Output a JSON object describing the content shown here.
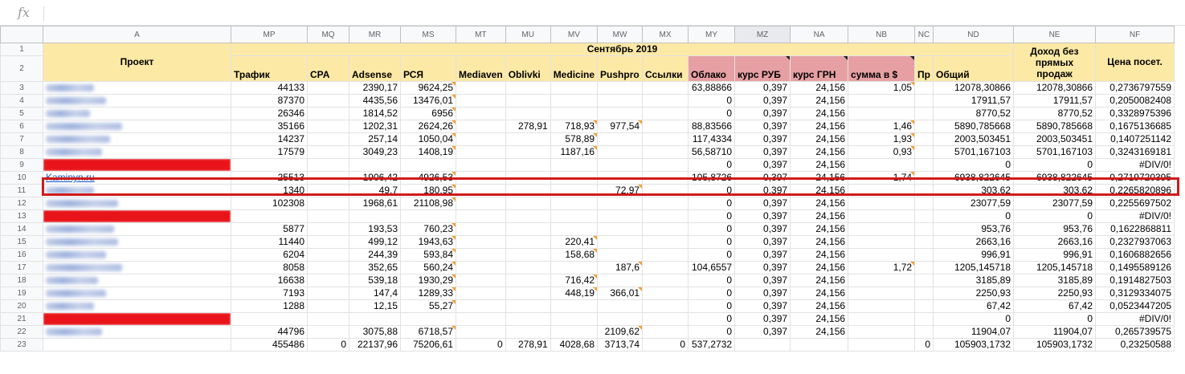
{
  "formula_bar": {
    "fx_icon": "fx",
    "value": ""
  },
  "columns": [
    "",
    "A",
    "MP",
    "MQ",
    "MR",
    "MS",
    "MT",
    "MU",
    "MV",
    "MW",
    "MX",
    "MY",
    "MZ",
    "NA",
    "NB",
    "NC",
    "ND",
    "NE",
    "NF"
  ],
  "selected_column": "MZ",
  "header": {
    "project": "Проект",
    "month": "Сентябрь 2019",
    "income_no_direct": "Доход без прямых продаж",
    "price_per_visit": "Цена посет.",
    "sub": [
      "Трафик",
      "CPA",
      "Adsense",
      "РСЯ",
      "Mediaven",
      "Oblivki",
      "Medicine",
      "Pushpro",
      "Ссылки",
      "Облако",
      "курс РУБ",
      "курс ГРН",
      "сумма в $",
      "Пр",
      "Общий"
    ]
  },
  "rows": [
    {
      "num": "3",
      "project": "",
      "blur": 60,
      "vals": [
        "44133",
        "",
        "2390,17",
        "9624,25",
        "",
        "",
        "",
        "",
        "",
        "63,88866",
        "0,397",
        "24,156",
        "1,05",
        "",
        "12078,30866",
        "12078,30866",
        "0,2736797559"
      ]
    },
    {
      "num": "4",
      "project": "",
      "blur": 75,
      "vals": [
        "87370",
        "",
        "4435,56",
        "13476,01",
        "",
        "",
        "",
        "",
        "",
        "0",
        "0,397",
        "24,156",
        "",
        "",
        "17911,57",
        "17911,57",
        "0,2050082408"
      ]
    },
    {
      "num": "5",
      "project": "",
      "blur": 55,
      "vals": [
        "26346",
        "",
        "1814,52",
        "6956",
        "",
        "",
        "",
        "",
        "",
        "0",
        "0,397",
        "24,156",
        "",
        "",
        "8770,52",
        "8770,52",
        "0,3328975396"
      ]
    },
    {
      "num": "6",
      "project": "",
      "blur": 95,
      "vals": [
        "35166",
        "",
        "1202,31",
        "2624,26",
        "",
        "278,91",
        "718,93",
        "977,54",
        "",
        "88,83566",
        "0,397",
        "24,156",
        "1,46",
        "",
        "5890,785668",
        "5890,785668",
        "0,1675136685"
      ]
    },
    {
      "num": "7",
      "project": "",
      "blur": 80,
      "vals": [
        "14237",
        "",
        "257,14",
        "1050,04",
        "",
        "",
        "578,89",
        "",
        "",
        "117,4334",
        "0,397",
        "24,156",
        "1,93",
        "",
        "2003,503451",
        "2003,503451",
        "0,1407251142"
      ]
    },
    {
      "num": "8",
      "project": "",
      "blur": 70,
      "vals": [
        "17579",
        "",
        "3049,23",
        "1408,19",
        "",
        "",
        "1187,16",
        "",
        "",
        "56,58710",
        "0,397",
        "24,156",
        "0,93",
        "",
        "5701,167103",
        "5701,167103",
        "0,3243169181"
      ]
    },
    {
      "num": "9",
      "project": "",
      "red": true,
      "vals": [
        "",
        "",
        "",
        "",
        "",
        "",
        "",
        "",
        "",
        "0",
        "0,397",
        "24,156",
        "",
        "",
        "0",
        "0",
        "#DIV/0!"
      ]
    },
    {
      "num": "10",
      "project": "Kaminyn.ru",
      "link": true,
      "vals": [
        "25513",
        "",
        "1906,42",
        "4926,53",
        "",
        "",
        "",
        "",
        "",
        "105,8726",
        "0,397",
        "24,156",
        "1,74",
        "",
        "6938,822645",
        "6938,822645",
        "0,2719720395"
      ]
    },
    {
      "num": "11",
      "project": "",
      "blur": 60,
      "vals": [
        "1340",
        "",
        "49,7",
        "180,95",
        "",
        "",
        "",
        "72,97",
        "",
        "0",
        "0,397",
        "24,156",
        "",
        "",
        "303,62",
        "303,62",
        "0,2265820896"
      ]
    },
    {
      "num": "12",
      "project": "",
      "blur": 90,
      "vals": [
        "102308",
        "",
        "1968,61",
        "21108,98",
        "",
        "",
        "",
        "",
        "",
        "0",
        "0,397",
        "24,156",
        "",
        "",
        "23077,59",
        "23077,59",
        "0,2255697502"
      ]
    },
    {
      "num": "13",
      "project": "",
      "red": true,
      "vals": [
        "",
        "",
        "",
        "",
        "",
        "",
        "",
        "",
        "",
        "0",
        "0,397",
        "24,156",
        "",
        "",
        "0",
        "0",
        "#DIV/0!"
      ]
    },
    {
      "num": "14",
      "project": "",
      "blur": 85,
      "vals": [
        "5877",
        "",
        "193,53",
        "760,23",
        "",
        "",
        "",
        "",
        "",
        "0",
        "0,397",
        "24,156",
        "",
        "",
        "953,76",
        "953,76",
        "0,1622868811"
      ]
    },
    {
      "num": "15",
      "project": "",
      "blur": 90,
      "vals": [
        "11440",
        "",
        "499,12",
        "1943,63",
        "",
        "",
        "220,41",
        "",
        "",
        "0",
        "0,397",
        "24,156",
        "",
        "",
        "2663,16",
        "2663,16",
        "0,2327937063"
      ]
    },
    {
      "num": "16",
      "project": "",
      "blur": 75,
      "vals": [
        "6204",
        "",
        "244,39",
        "593,84",
        "",
        "",
        "158,68",
        "",
        "",
        "0",
        "0,397",
        "24,156",
        "",
        "",
        "996,91",
        "996,91",
        "0,1606882656"
      ]
    },
    {
      "num": "17",
      "project": "",
      "blur": 95,
      "vals": [
        "8058",
        "",
        "352,65",
        "560,24",
        "",
        "",
        "",
        "187,6",
        "",
        "104,6557",
        "0,397",
        "24,156",
        "1,72",
        "",
        "1205,145718",
        "1205,145718",
        "0,1495589126"
      ]
    },
    {
      "num": "18",
      "project": "",
      "blur": 65,
      "vals": [
        "16638",
        "",
        "539,18",
        "1930,29",
        "",
        "",
        "716,42",
        "",
        "",
        "0",
        "0,397",
        "24,156",
        "",
        "",
        "3185,89",
        "3185,89",
        "0,1914827503"
      ]
    },
    {
      "num": "19",
      "project": "",
      "blur": 75,
      "vals": [
        "7193",
        "",
        "147,4",
        "1289,33",
        "",
        "",
        "448,19",
        "366,01",
        "",
        "0",
        "0,397",
        "24,156",
        "",
        "",
        "2250,93",
        "2250,93",
        "0,3129334075"
      ]
    },
    {
      "num": "20",
      "project": "",
      "blur": 60,
      "vals": [
        "1288",
        "",
        "12,15",
        "55,27",
        "",
        "",
        "",
        "",
        "",
        "0",
        "0,397",
        "24,156",
        "",
        "",
        "67,42",
        "67,42",
        "0,0523447205"
      ]
    },
    {
      "num": "21",
      "project": "",
      "red": true,
      "vals": [
        "",
        "",
        "",
        "",
        "",
        "",
        "",
        "",
        "",
        "0",
        "0,397",
        "24,156",
        "",
        "",
        "0",
        "0",
        "#DIV/0!"
      ]
    },
    {
      "num": "22",
      "project": "",
      "blur": 70,
      "vals": [
        "44796",
        "",
        "3075,88",
        "6718,57",
        "",
        "",
        "",
        "2109,62",
        "",
        "0",
        "0,397",
        "24,156",
        "",
        "",
        "11904,07",
        "11904,07",
        "0,265739575"
      ]
    },
    {
      "num": "23",
      "project": "",
      "vals": [
        "455486",
        "0",
        "22137,96",
        "75206,61",
        "0",
        "278,91",
        "4028,68",
        "3713,74",
        "0",
        "537,2732",
        "",
        "",
        "",
        "0",
        "105903,1732",
        "105903,1732",
        "0,23250588"
      ]
    }
  ],
  "colors": {
    "yellow": "#fde9a6",
    "pink": "#e6a0a3",
    "highlight": "#d21a1a",
    "link": "#1155cc"
  }
}
